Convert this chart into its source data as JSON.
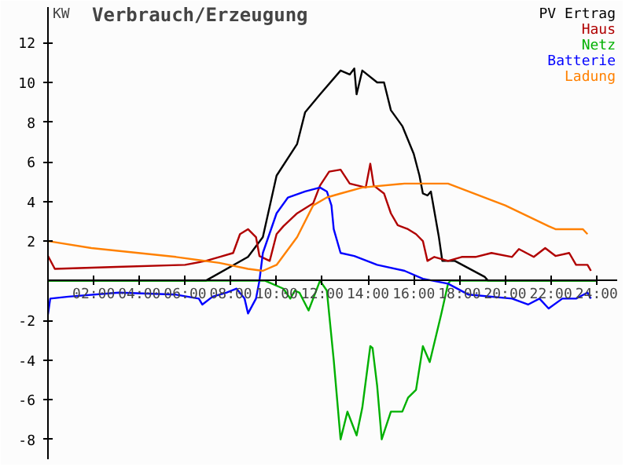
{
  "chart_data": {
    "type": "line",
    "title": "Verbrauch/Erzeugung",
    "ylabel": "KW",
    "xlim": [
      0,
      24.9
    ],
    "ylim": [
      -9,
      13.8
    ],
    "xticks": [
      {
        "value": 2,
        "label": "02:00"
      },
      {
        "value": 4,
        "label": "04:00"
      },
      {
        "value": 6,
        "label": "06:00"
      },
      {
        "value": 8,
        "label": "08:00"
      },
      {
        "value": 10,
        "label": "10:00"
      },
      {
        "value": 12,
        "label": "12:00"
      },
      {
        "value": 14,
        "label": "14:00"
      },
      {
        "value": 16,
        "label": "16:00"
      },
      {
        "value": 18,
        "label": "18:00"
      },
      {
        "value": 20,
        "label": "20:00"
      },
      {
        "value": 22,
        "label": "22:00"
      },
      {
        "value": 24,
        "label": "24:00"
      }
    ],
    "yticks": [
      -8,
      -6,
      -4,
      -2,
      2,
      4,
      6,
      8,
      10,
      12
    ],
    "grid": false,
    "legend": "top right",
    "line_style": "solid",
    "series": [
      {
        "name": "PV Ertrag",
        "color": "#000000",
        "x": [
          0,
          6.9,
          8.75,
          9.4,
          10,
          10.9,
          11.25,
          11.9,
          12.8,
          13.2,
          13.4,
          13.5,
          13.75,
          14.4,
          14.7,
          15,
          15.5,
          16,
          16.25,
          16.4,
          16.6,
          16.75,
          17.1,
          17.25,
          17.8,
          19.1,
          19.25,
          24
        ],
        "values": [
          0,
          0,
          1.2,
          2.2,
          5.3,
          6.9,
          8.5,
          9.4,
          10.6,
          10.4,
          10.7,
          9.4,
          10.6,
          10.0,
          10.0,
          8.6,
          7.8,
          6.4,
          5.3,
          4.4,
          4.3,
          4.5,
          2.2,
          1.0,
          1.0,
          0.2,
          0,
          0
        ]
      },
      {
        "name": "Haus",
        "color": "#b00000",
        "x": [
          0,
          0.3,
          3,
          6,
          6.9,
          7.5,
          8.1,
          8.4,
          8.75,
          9.1,
          9.25,
          9.7,
          10,
          10.3,
          10.9,
          11.6,
          11.9,
          12.3,
          12.8,
          13.2,
          13.9,
          14.1,
          14.25,
          14.7,
          15,
          15.3,
          15.75,
          16.1,
          16.4,
          16.6,
          16.9,
          17.5,
          18.1,
          18.7,
          19.4,
          20.3,
          20.6,
          21.25,
          21.75,
          22.2,
          22.8,
          23.1,
          23.6,
          23.75
        ],
        "values": [
          1.25,
          0.6,
          0.7,
          0.8,
          1.0,
          1.2,
          1.4,
          2.35,
          2.6,
          2.2,
          1.25,
          1.0,
          2.35,
          2.75,
          3.4,
          3.9,
          4.8,
          5.5,
          5.6,
          4.9,
          4.7,
          5.9,
          4.8,
          4.4,
          3.4,
          2.8,
          2.6,
          2.35,
          2.0,
          1.0,
          1.2,
          1.0,
          1.2,
          1.2,
          1.4,
          1.2,
          1.6,
          1.2,
          1.65,
          1.25,
          1.4,
          0.8,
          0.8,
          0.5
        ]
      },
      {
        "name": "Netz",
        "color": "#00b000",
        "x": [
          0,
          9.5,
          10.3,
          10.6,
          10.8,
          11.0,
          11.4,
          11.6,
          11.9,
          12.2,
          12.5,
          12.8,
          13.1,
          13.3,
          13.5,
          13.75,
          14.1,
          14.2,
          14.4,
          14.6,
          15,
          15.5,
          15.75,
          16.1,
          16.4,
          16.7,
          17.2,
          17.5,
          17.6,
          24
        ],
        "values": [
          0,
          0,
          -0.4,
          -0.9,
          -0.5,
          -0.6,
          -1.5,
          -0.9,
          0,
          -0.5,
          -4,
          -8,
          -6.6,
          -7.2,
          -7.8,
          -6.4,
          -3.3,
          -3.4,
          -5.3,
          -8,
          -6.6,
          -6.6,
          -5.9,
          -5.5,
          -3.3,
          -4.1,
          -1.7,
          -0.15,
          0,
          0
        ]
      },
      {
        "name": "Batterie",
        "color": "#0000ff",
        "x": [
          0,
          0.1,
          0.9,
          3.1,
          5.6,
          6.6,
          6.75,
          7.2,
          7.8,
          8.25,
          8.6,
          8.75,
          9.1,
          9.25,
          9.4,
          10,
          10.5,
          11.25,
          11.9,
          12.2,
          12.4,
          12.5,
          12.8,
          13.4,
          14.4,
          15.6,
          16.4,
          17.5,
          18.4,
          20.3,
          21,
          21.5,
          21.9,
          22.5,
          23.1,
          23.6,
          23.75
        ],
        "values": [
          -1.7,
          -0.9,
          -0.8,
          -0.6,
          -0.7,
          -0.9,
          -1.2,
          -0.8,
          -0.6,
          -0.4,
          -0.9,
          -1.65,
          -0.9,
          0,
          1.4,
          3.4,
          4.2,
          4.5,
          4.7,
          4.5,
          3.8,
          2.6,
          1.4,
          1.25,
          0.8,
          0.5,
          0.1,
          -0.15,
          -0.7,
          -0.9,
          -1.2,
          -0.9,
          -1.4,
          -0.9,
          -0.9,
          -0.6,
          -0.9
        ]
      },
      {
        "name": "Ladung",
        "color": "#ff8000",
        "x": [
          0,
          1.9,
          5.6,
          7.5,
          8.75,
          9.4,
          10,
          10.9,
          11.6,
          12.2,
          12.8,
          13.75,
          15.6,
          17.5,
          18.4,
          20,
          21.9,
          22.2,
          23.4,
          23.6
        ],
        "values": [
          2.0,
          1.65,
          1.2,
          0.9,
          0.6,
          0.5,
          0.8,
          2.2,
          3.8,
          4.2,
          4.4,
          4.7,
          4.9,
          4.9,
          4.5,
          3.8,
          2.75,
          2.6,
          2.6,
          2.35
        ]
      }
    ]
  }
}
